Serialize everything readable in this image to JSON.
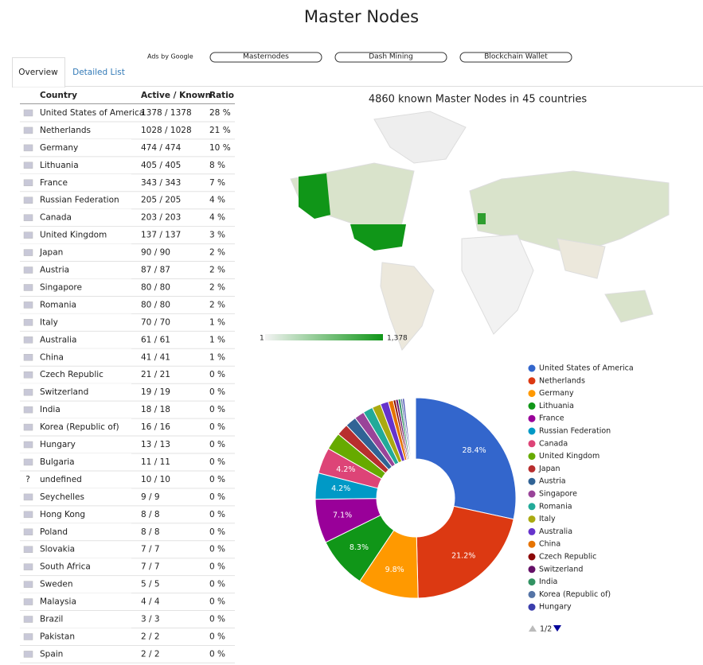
{
  "header": {
    "title": "Master Nodes"
  },
  "ads": {
    "label": "Ads by Google",
    "links": [
      "Masternodes",
      "Dash Mining",
      "Blockchain Wallet"
    ]
  },
  "tabs": [
    "Overview",
    "Detailed List"
  ],
  "table": {
    "headers": [
      "Country",
      "Active / Known",
      "Ratio"
    ],
    "rows": [
      [
        null,
        "United States of America",
        "1378 / 1378",
        "28 %"
      ],
      [
        null,
        "Netherlands",
        "1028 / 1028",
        "21 %"
      ],
      [
        null,
        "Germany",
        "474 / 474",
        "10 %"
      ],
      [
        null,
        "Lithuania",
        "405 / 405",
        "8 %"
      ],
      [
        null,
        "France",
        "343 / 343",
        "7 %"
      ],
      [
        null,
        "Russian Federation",
        "205 / 205",
        "4 %"
      ],
      [
        null,
        "Canada",
        "203 / 203",
        "4 %"
      ],
      [
        null,
        "United Kingdom",
        "137 / 137",
        "3 %"
      ],
      [
        null,
        "Japan",
        "90 / 90",
        "2 %"
      ],
      [
        null,
        "Austria",
        "87 / 87",
        "2 %"
      ],
      [
        null,
        "Singapore",
        "80 / 80",
        "2 %"
      ],
      [
        null,
        "Romania",
        "80 / 80",
        "2 %"
      ],
      [
        null,
        "Italy",
        "70 / 70",
        "1 %"
      ],
      [
        null,
        "Australia",
        "61 / 61",
        "1 %"
      ],
      [
        null,
        "China",
        "41 / 41",
        "1 %"
      ],
      [
        null,
        "Czech Republic",
        "21 / 21",
        "0 %"
      ],
      [
        null,
        "Switzerland",
        "19 / 19",
        "0 %"
      ],
      [
        null,
        "India",
        "18 / 18",
        "0 %"
      ],
      [
        null,
        "Korea (Republic of)",
        "16 / 16",
        "0 %"
      ],
      [
        null,
        "Hungary",
        "13 / 13",
        "0 %"
      ],
      [
        null,
        "Bulgaria",
        "11 / 11",
        "0 %"
      ],
      [
        "?",
        "undefined",
        "10 / 10",
        "0 %"
      ],
      [
        null,
        "Seychelles",
        "9 / 9",
        "0 %"
      ],
      [
        null,
        "Hong Kong",
        "8 / 8",
        "0 %"
      ],
      [
        null,
        "Poland",
        "8 / 8",
        "0 %"
      ],
      [
        null,
        "Slovakia",
        "7 / 7",
        "0 %"
      ],
      [
        null,
        "South Africa",
        "7 / 7",
        "0 %"
      ],
      [
        null,
        "Sweden",
        "5 / 5",
        "0 %"
      ],
      [
        null,
        "Malaysia",
        "4 / 4",
        "0 %"
      ],
      [
        null,
        "Brazil",
        "3 / 3",
        "0 %"
      ],
      [
        null,
        "Pakistan",
        "2 / 2",
        "0 %"
      ],
      [
        null,
        "Spain",
        "2 / 2",
        "0 %"
      ]
    ]
  },
  "map": {
    "title": "4860 known Master Nodes in 45 countries",
    "legend_min": "1",
    "legend_max": "1,378"
  },
  "chart_data": {
    "type": "pie",
    "categories": [
      "United States of America",
      "Netherlands",
      "Germany",
      "Lithuania",
      "France",
      "Russian Federation",
      "Canada",
      "United Kingdom",
      "Japan",
      "Austria",
      "Singapore",
      "Romania",
      "Italy",
      "Australia",
      "China",
      "Czech Republic",
      "Switzerland",
      "India",
      "Korea (Republic of)",
      "Hungary"
    ],
    "values": [
      28.4,
      21.2,
      9.8,
      8.3,
      7.1,
      4.2,
      4.2,
      2.8,
      1.9,
      1.8,
      1.6,
      1.6,
      1.4,
      1.3,
      0.8,
      0.4,
      0.4,
      0.4,
      0.3,
      0.3
    ],
    "value_labels": [
      "28.4%",
      "21.2%",
      "9.8%",
      "8.3%",
      "7.1%",
      "4.2%",
      "4.2%",
      null,
      null,
      null,
      null,
      null,
      null,
      null,
      null,
      null,
      null,
      null,
      null,
      null
    ],
    "colors": [
      "#3366cc",
      "#dc3912",
      "#ff9900",
      "#109618",
      "#990099",
      "#0099c6",
      "#dd4477",
      "#66aa00",
      "#b82e2e",
      "#316395",
      "#994499",
      "#22aa99",
      "#aaaa11",
      "#6633cc",
      "#e67300",
      "#8b0707",
      "#651067",
      "#329262",
      "#5574a6",
      "#3b3eac"
    ],
    "legend_page": "1/2"
  }
}
